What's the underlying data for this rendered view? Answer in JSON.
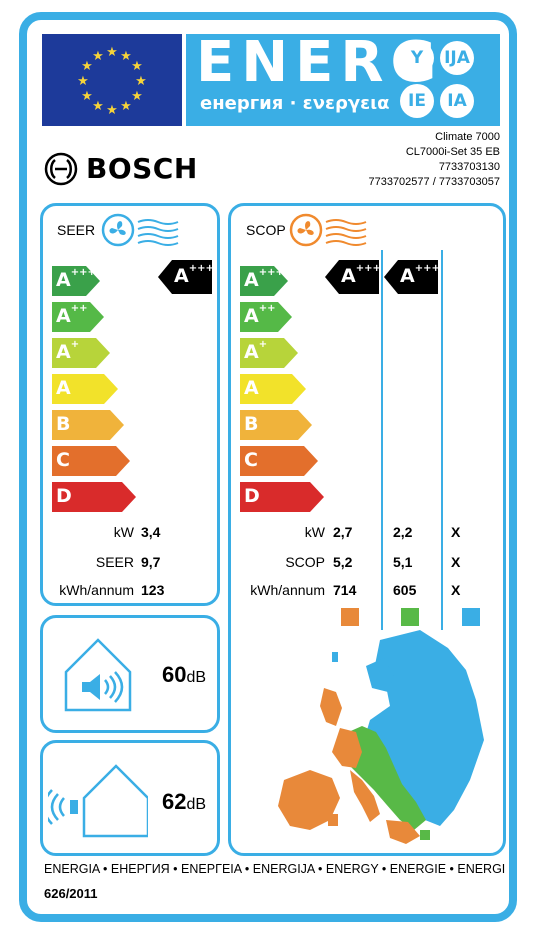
{
  "header": {
    "energ": "ENERG",
    "subtitle": "енергия · ενεργεια",
    "circles": [
      "Y",
      "IJA",
      "IE",
      "IA"
    ]
  },
  "model": {
    "lines": [
      "Climate 7000",
      "CL7000i-Set 35 EB",
      "7733703130",
      "7733702577 / 7733703057"
    ]
  },
  "brand": {
    "name": "BOSCH"
  },
  "classes": [
    {
      "base": "A",
      "sup": "+++",
      "color": "#3aa14a"
    },
    {
      "base": "A",
      "sup": "++",
      "color": "#55b947"
    },
    {
      "base": "A",
      "sup": "+",
      "color": "#b7d43a"
    },
    {
      "base": "A",
      "sup": "",
      "color": "#f2e22a"
    },
    {
      "base": "B",
      "sup": "",
      "color": "#f0b33b"
    },
    {
      "base": "C",
      "sup": "",
      "color": "#e36f2c"
    },
    {
      "base": "D",
      "sup": "",
      "color": "#d92b2b"
    }
  ],
  "cooling": {
    "heading": "SEER",
    "class_mark": {
      "base": "A",
      "sup": "+++"
    },
    "rows": [
      {
        "label": "kW",
        "value": "3,4"
      },
      {
        "label": "SEER",
        "value": "9,7"
      },
      {
        "label": "kWh/annum",
        "value": "123"
      }
    ]
  },
  "heating": {
    "heading": "SCOP",
    "class_marks": [
      {
        "base": "A",
        "sup": "+++"
      },
      {
        "base": "A",
        "sup": "+++"
      }
    ],
    "rows": [
      {
        "label": "kW",
        "values": [
          "2,7",
          "2,2",
          "X"
        ]
      },
      {
        "label": "SCOP",
        "values": [
          "5,2",
          "5,1",
          "X"
        ]
      },
      {
        "label": "kWh/annum",
        "values": [
          "714",
          "605",
          "X"
        ]
      }
    ],
    "zone_colors": [
      "#e8893a",
      "#58b947",
      "#3aaee5"
    ]
  },
  "noise": {
    "indoor": {
      "value": "60",
      "unit": "dB"
    },
    "outdoor": {
      "value": "62",
      "unit": "dB"
    }
  },
  "footer": {
    "languages": "ENERGIA • ЕНЕРГИЯ • ΕΝΕΡΓΕΙΑ • ENERGIJA • ENERGY • ENERGIE • ENERGI",
    "regulation": "626/2011"
  },
  "colors": {
    "accent": "#3aaee5",
    "eu_blue": "#1d3a9a",
    "eu_star": "#f6d33a",
    "fan_orange": "#f08a2e"
  }
}
